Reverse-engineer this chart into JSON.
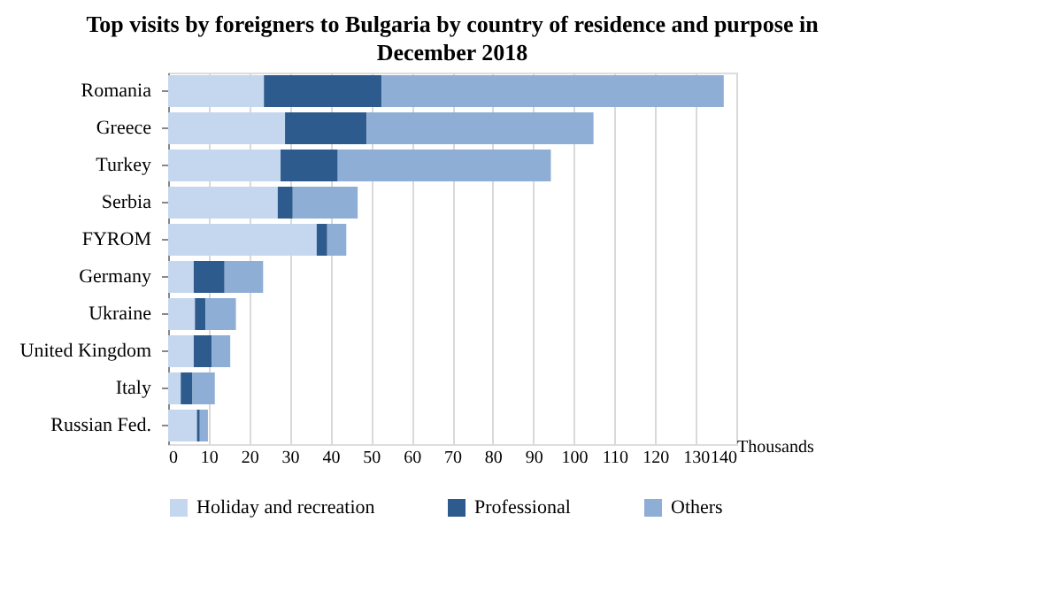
{
  "chart_data": {
    "type": "bar",
    "orientation": "horizontal",
    "stacked": true,
    "title": "Top visits by foreigners to Bulgaria by country of residence and purpose in December 2018",
    "xlabel": "Thousands",
    "categories": [
      "Romania",
      "Greece",
      "Turkey",
      "Serbia",
      "FYROM",
      "Germany",
      "Ukraine",
      "United Kingdom",
      "Italy",
      "Russian Fed."
    ],
    "series": [
      {
        "name": "Holiday and recreation",
        "color": "#c5d7ee",
        "values": [
          23.6,
          28.8,
          27.7,
          27,
          36.6,
          6.3,
          6.6,
          6.3,
          3.1,
          7.1
        ]
      },
      {
        "name": "Professional",
        "color": "#2e5b8e",
        "values": [
          29,
          20.1,
          14.1,
          3.7,
          2.6,
          7.6,
          2.6,
          4.4,
          2.9,
          0.7
        ]
      },
      {
        "name": "Others",
        "color": "#8eaed6",
        "values": [
          84.3,
          55.9,
          52.5,
          16,
          4.7,
          9.5,
          7.5,
          4.6,
          5.5,
          2
        ]
      }
    ],
    "xlim": [
      0,
      140
    ],
    "xticks": [
      0,
      10,
      20,
      30,
      40,
      50,
      60,
      70,
      80,
      90,
      100,
      110,
      120,
      130,
      140
    ],
    "grid": "x",
    "legend": "bottom"
  }
}
